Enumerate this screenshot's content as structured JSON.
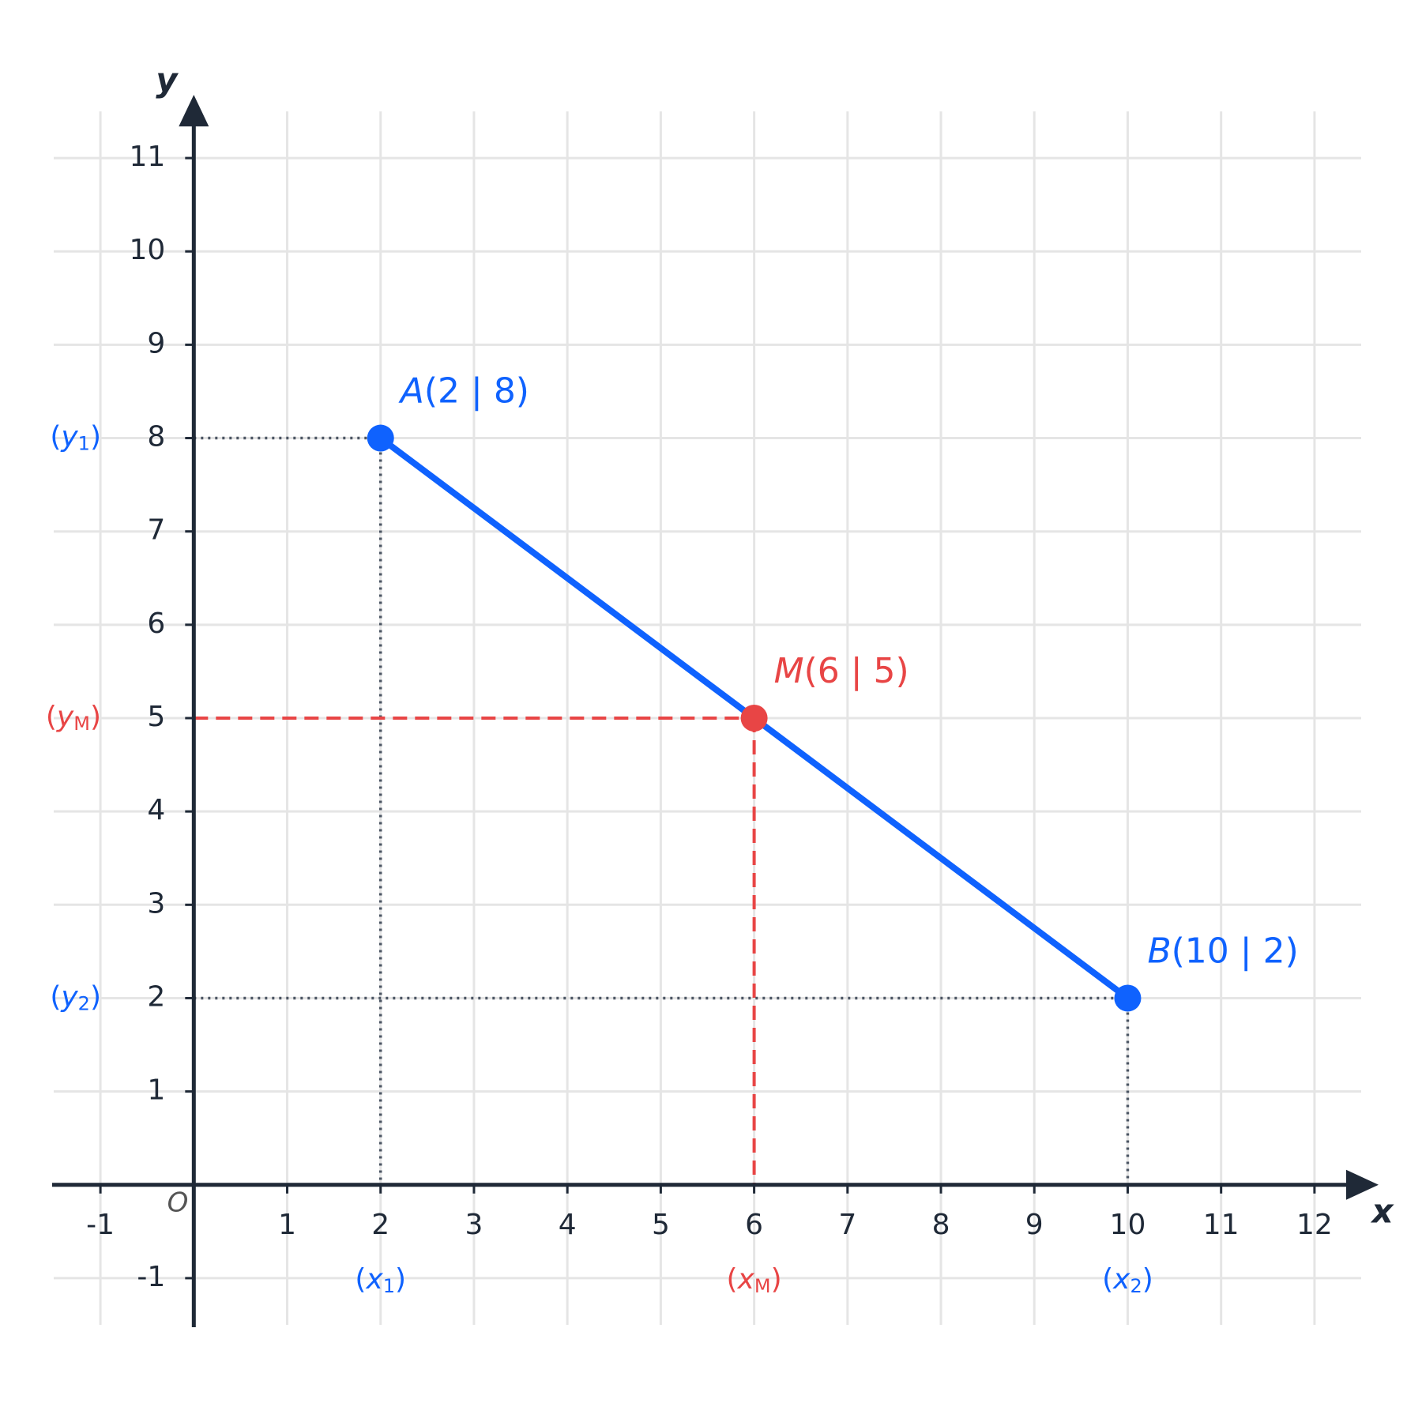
{
  "chart_data": {
    "type": "coordinate-plane",
    "axis_labels": {
      "x": "x",
      "y": "y"
    },
    "origin_label": "O",
    "xlim": [
      -1.5,
      12.5
    ],
    "ylim": [
      -1.5,
      11.5
    ],
    "xticks": [
      -1,
      1,
      2,
      3,
      4,
      5,
      6,
      7,
      8,
      9,
      10,
      11,
      12
    ],
    "yticks": [
      -1,
      1,
      2,
      3,
      4,
      5,
      6,
      7,
      8,
      9,
      10,
      11
    ],
    "grid": true,
    "segment_color": "#0f62fe",
    "points": [
      {
        "label": [
          "A",
          "(2 | 8)"
        ],
        "x": 2,
        "y": 8,
        "color": "#0f62fe",
        "guide": "dotted",
        "x_label": [
          "(",
          "x",
          "1",
          ")"
        ],
        "y_label": [
          "(",
          "y",
          "1",
          ")"
        ]
      },
      {
        "label": [
          "M",
          "(6 | 5)"
        ],
        "x": 6,
        "y": 5,
        "color": "#e84545",
        "guide": "dashed",
        "x_label": [
          "(",
          "x",
          "M",
          ")"
        ],
        "y_label": [
          "(",
          "y",
          "M",
          ")"
        ]
      },
      {
        "label": [
          "B",
          "(10 | 2)"
        ],
        "x": 10,
        "y": 2,
        "color": "#0f62fe",
        "guide": "dotted",
        "x_label": [
          "(",
          "x",
          "2",
          ")"
        ],
        "y_label": [
          "(",
          "y",
          "2",
          ")"
        ]
      }
    ]
  }
}
